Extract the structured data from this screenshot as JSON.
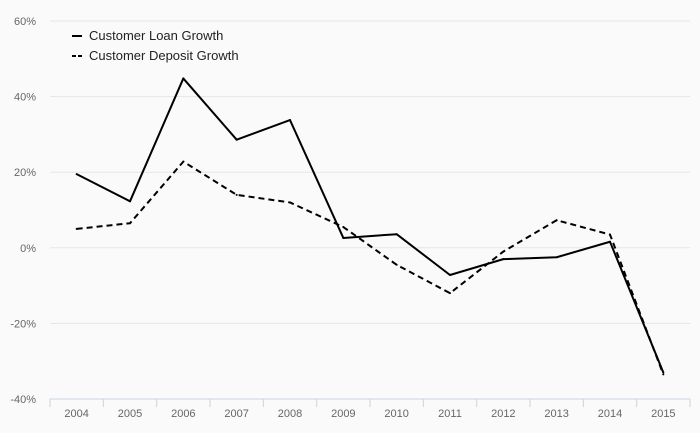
{
  "chart_data": {
    "type": "line",
    "title": "",
    "xlabel": "",
    "ylabel": "",
    "categories": [
      "2004",
      "2005",
      "2006",
      "2007",
      "2008",
      "2009",
      "2010",
      "2011",
      "2012",
      "2013",
      "2014",
      "2015"
    ],
    "ylim": [
      -40,
      60
    ],
    "yticks": [
      -40,
      -20,
      0,
      20,
      40,
      60
    ],
    "ytick_labels": [
      "-40%",
      "-20%",
      "0%",
      "20%",
      "40%",
      "60%"
    ],
    "grid": true,
    "legend_position": "top-left",
    "series": [
      {
        "name": "Customer Loan Growth",
        "style": "solid",
        "color": "#000000",
        "values": [
          19.5,
          12.3,
          44.8,
          28.6,
          33.8,
          2.6,
          3.6,
          -7.2,
          -3.0,
          -2.5,
          1.6,
          -33.0
        ]
      },
      {
        "name": "Customer Deposit Growth",
        "style": "dashed",
        "color": "#000000",
        "values": [
          5.0,
          6.5,
          22.8,
          14.0,
          12.0,
          5.5,
          -4.5,
          -12.0,
          -1.0,
          7.3,
          3.5,
          -33.5
        ]
      }
    ]
  }
}
